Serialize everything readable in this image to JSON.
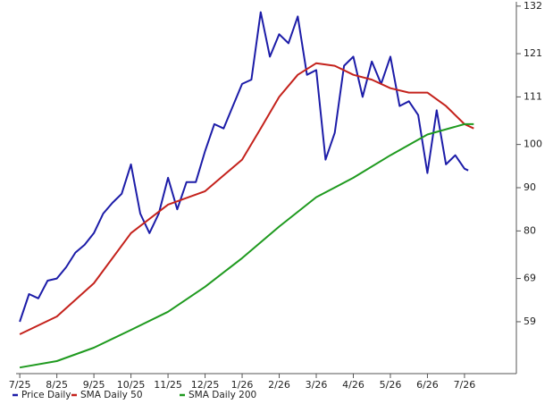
{
  "chart_data": {
    "type": "line",
    "xlim": [
      -0.1,
      13.4
    ],
    "xticks": [
      {
        "value": 0,
        "label": "7/25"
      },
      {
        "value": 1,
        "label": "8/25"
      },
      {
        "value": 2,
        "label": "9/25"
      },
      {
        "value": 3,
        "label": "10/25"
      },
      {
        "value": 4,
        "label": "11/25"
      },
      {
        "value": 5,
        "label": "12/25"
      },
      {
        "value": 6,
        "label": "1/26"
      },
      {
        "value": 7,
        "label": "2/26"
      },
      {
        "value": 8,
        "label": "3/26"
      },
      {
        "value": 9,
        "label": "4/26"
      },
      {
        "value": 10,
        "label": "5/26"
      },
      {
        "value": 11,
        "label": "6/26"
      },
      {
        "value": 12,
        "label": "7/26"
      }
    ],
    "ylim": [
      47,
      133
    ],
    "yticks": [
      59,
      69,
      80,
      90,
      100,
      111,
      121,
      132
    ],
    "grid": false,
    "legend": "bottom",
    "series": [
      {
        "name": "Price Daily",
        "color": "#1c1ca8",
        "x": [
          0,
          0.25,
          0.5,
          0.75,
          1,
          1.25,
          1.5,
          1.75,
          2,
          2.25,
          2.5,
          2.75,
          3,
          3.25,
          3.5,
          3.75,
          4,
          4.25,
          4.5,
          4.75,
          5,
          5.25,
          5.5,
          5.75,
          6,
          6.25,
          6.5,
          6.75,
          7,
          7.25,
          7.5,
          7.75,
          8,
          8.25,
          8.5,
          8.75,
          9,
          9.25,
          9.5,
          9.75,
          10,
          10.25,
          10.5,
          10.75,
          11,
          11.25,
          11.5,
          11.75,
          12,
          12.1
        ],
        "values": [
          59,
          65.4,
          64.4,
          68.5,
          69,
          71.6,
          75,
          76.8,
          79.5,
          84,
          86.5,
          88.6,
          95.4,
          84,
          79.5,
          84,
          92.3,
          85,
          91.3,
          91.3,
          98.5,
          104.7,
          103.7,
          108.9,
          114,
          115,
          130.6,
          120.3,
          125.5,
          123.4,
          129.6,
          116.1,
          117.2,
          96.5,
          102.7,
          118.2,
          120.3,
          111,
          119.2,
          114,
          120.3,
          108.9,
          110,
          106.8,
          93.4,
          107.9,
          95.4,
          97.5,
          94.4,
          94
        ]
      },
      {
        "name": "SMA Daily 50",
        "color": "#c4221c",
        "x": [
          0,
          1,
          2,
          3,
          4,
          5,
          6,
          6.5,
          7,
          7.5,
          8,
          8.5,
          9,
          9.5,
          10,
          10.5,
          11,
          11.5,
          12,
          12.25
        ],
        "values": [
          56.1,
          60.2,
          67.9,
          79.5,
          86.1,
          89.2,
          96.5,
          103.7,
          111,
          116.1,
          118.8,
          118.2,
          116.1,
          115,
          113,
          112,
          112,
          108.9,
          104.7,
          103.7
        ]
      },
      {
        "name": "SMA Daily 200",
        "color": "#1f9a1f",
        "x": [
          0,
          1,
          2,
          3,
          4,
          5,
          6,
          7,
          8,
          9,
          10,
          11,
          12,
          12.25
        ],
        "values": [
          48.4,
          49.9,
          53,
          57.1,
          61.3,
          67.1,
          73.7,
          81,
          87.8,
          92.3,
          97.5,
          102.3,
          104.7,
          104.7
        ]
      }
    ]
  }
}
